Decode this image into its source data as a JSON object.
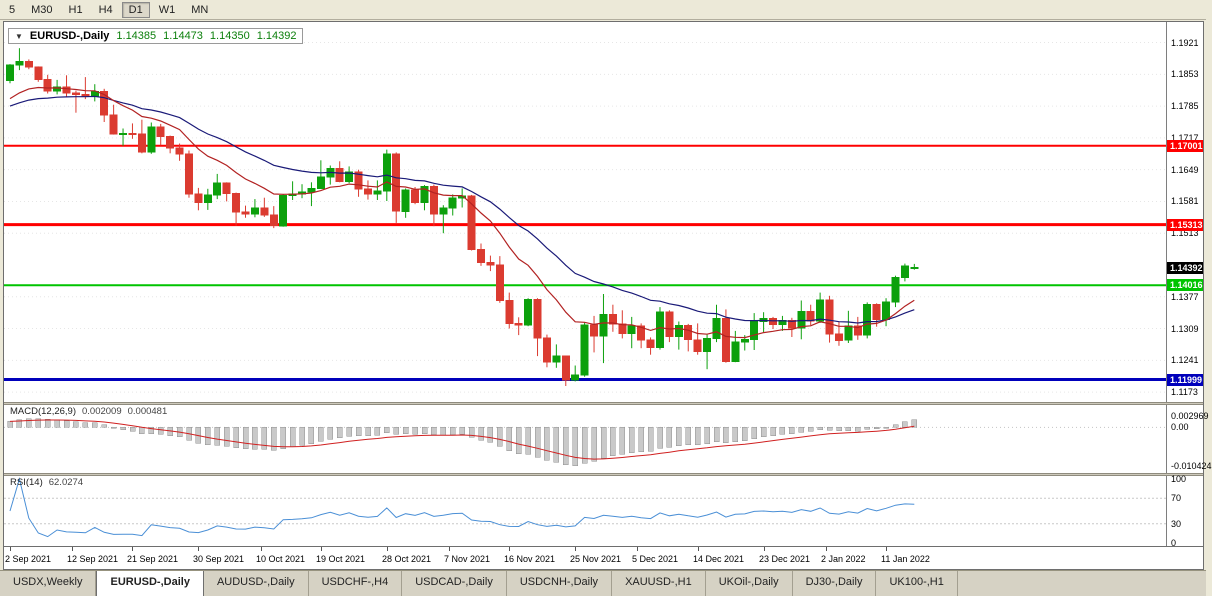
{
  "toolbar": {
    "timeframes": [
      {
        "label": "5",
        "active": false
      },
      {
        "label": "M30",
        "active": false
      },
      {
        "label": "H1",
        "active": false
      },
      {
        "label": "H4",
        "active": false
      },
      {
        "label": "D1",
        "active": true
      },
      {
        "label": "W1",
        "active": false
      },
      {
        "label": "MN",
        "active": false
      }
    ]
  },
  "chart_header": {
    "dropdown_icon": "▼",
    "symbol": "EURUSD-,Daily",
    "open": "1.14385",
    "high": "1.14473",
    "low": "1.14350",
    "close": "1.14392"
  },
  "price_axis": {
    "labels": [
      "1.1921",
      "1.1853",
      "1.1785",
      "1.1717",
      "1.1649",
      "1.1581",
      "1.1513",
      "1.1377",
      "1.1309",
      "1.1241",
      "1.1173"
    ]
  },
  "current_price": {
    "label": "1.14392",
    "value": 1.14392,
    "color": "#000000"
  },
  "hlines": [
    {
      "label": "1.17001",
      "value": 1.17001,
      "color": "#ff0000",
      "width": 2
    },
    {
      "label": "1.15313",
      "value": 1.15313,
      "color": "#ff0000",
      "width": 3
    },
    {
      "label": "1.14016",
      "value": 1.14016,
      "color": "#00c400",
      "width": 2
    },
    {
      "label": "1.11999",
      "value": 1.11999,
      "color": "#0000bb",
      "width": 3
    }
  ],
  "x_axis": {
    "labels": [
      {
        "text": "2 Sep 2021",
        "i": 0
      },
      {
        "text": "12 Sep 2021",
        "i": 6.6
      },
      {
        "text": "21 Sep 2021",
        "i": 13
      },
      {
        "text": "30 Sep 2021",
        "i": 20
      },
      {
        "text": "10 Oct 2021",
        "i": 26.6
      },
      {
        "text": "19 Oct 2021",
        "i": 33
      },
      {
        "text": "28 Oct 2021",
        "i": 40
      },
      {
        "text": "7 Nov 2021",
        "i": 46.6
      },
      {
        "text": "16 Nov 2021",
        "i": 53
      },
      {
        "text": "25 Nov 2021",
        "i": 60
      },
      {
        "text": "5 Dec 2021",
        "i": 66.6
      },
      {
        "text": "14 Dec 2021",
        "i": 73
      },
      {
        "text": "23 Dec 2021",
        "i": 80
      },
      {
        "text": "2 Jan 2022",
        "i": 86.6
      },
      {
        "text": "11 Jan 2022",
        "i": 93
      }
    ]
  },
  "macd": {
    "label": "MACD(12,26,9)",
    "value_main": "0.002009",
    "value_signal": "0.000481",
    "axis": [
      "0.002969",
      "0.00",
      "-0.010424"
    ]
  },
  "rsi": {
    "label": "RSI(14)",
    "value": "62.0274",
    "axis": [
      "100",
      "70",
      "30",
      "0"
    ],
    "levels": [
      70,
      30
    ]
  },
  "tabs": [
    {
      "label": "USDX,Weekly",
      "active": false
    },
    {
      "label": "EURUSD-,Daily",
      "active": true
    },
    {
      "label": "AUDUSD-,Daily",
      "active": false
    },
    {
      "label": "USDCHF-,H4",
      "active": false
    },
    {
      "label": "USDCAD-,Daily",
      "active": false
    },
    {
      "label": "USDCNH-,Daily",
      "active": false
    },
    {
      "label": "XAUUSD-,H1",
      "active": false
    },
    {
      "label": "UKOil-,Daily",
      "active": false
    },
    {
      "label": "DJ30-,Daily",
      "active": false
    },
    {
      "label": "UK100-,H1",
      "active": false
    }
  ],
  "colors": {
    "bull": "#0ca00c",
    "bear": "#db3b30",
    "ema_fast": "#b22222",
    "ema_slow": "#1a1a78",
    "macd_hist": "#c9c9c9",
    "macd_signal": "#d02020",
    "rsi_line": "#4a8fd6"
  },
  "chart_data": {
    "type": "candlestick",
    "symbol": "EURUSD-",
    "timeframe": "Daily",
    "candles": [
      [
        1.184,
        1.1875,
        1.1834,
        1.1873
      ],
      [
        1.1873,
        1.1909,
        1.1862,
        1.188
      ],
      [
        1.188,
        1.1885,
        1.1864,
        1.1869
      ],
      [
        1.1869,
        1.187,
        1.1837,
        1.1842
      ],
      [
        1.1842,
        1.1852,
        1.1812,
        1.1817
      ],
      [
        1.1817,
        1.1841,
        1.181,
        1.1826
      ],
      [
        1.1826,
        1.1851,
        1.1805,
        1.1813
      ],
      [
        1.1813,
        1.1818,
        1.1771,
        1.181
      ],
      [
        1.181,
        1.1847,
        1.18,
        1.1805
      ],
      [
        1.1805,
        1.1832,
        1.1795,
        1.1816
      ],
      [
        1.1816,
        1.1822,
        1.1751,
        1.1766
      ],
      [
        1.1766,
        1.1788,
        1.1724,
        1.1725
      ],
      [
        1.1725,
        1.1737,
        1.17,
        1.1726
      ],
      [
        1.1726,
        1.1748,
        1.1715,
        1.1725
      ],
      [
        1.1725,
        1.1756,
        1.1684,
        1.1687
      ],
      [
        1.1687,
        1.175,
        1.1683,
        1.174
      ],
      [
        1.174,
        1.1747,
        1.1701,
        1.172
      ],
      [
        1.172,
        1.1722,
        1.1684,
        1.1695
      ],
      [
        1.1695,
        1.1705,
        1.1668,
        1.1683
      ],
      [
        1.1683,
        1.169,
        1.1589,
        1.1597
      ],
      [
        1.1597,
        1.161,
        1.1562,
        1.1579
      ],
      [
        1.1579,
        1.1608,
        1.1563,
        1.1595
      ],
      [
        1.1595,
        1.164,
        1.1586,
        1.1621
      ],
      [
        1.1621,
        1.1622,
        1.1581,
        1.1598
      ],
      [
        1.1598,
        1.16,
        1.1529,
        1.1558
      ],
      [
        1.1558,
        1.1572,
        1.1546,
        1.1554
      ],
      [
        1.1554,
        1.1586,
        1.1547,
        1.1567
      ],
      [
        1.1567,
        1.1589,
        1.1548,
        1.1552
      ],
      [
        1.1552,
        1.1571,
        1.1524,
        1.1529
      ],
      [
        1.1529,
        1.1597,
        1.1527,
        1.1594
      ],
      [
        1.1594,
        1.1624,
        1.1584,
        1.1597
      ],
      [
        1.1597,
        1.1618,
        1.1588,
        1.1601
      ],
      [
        1.1601,
        1.1622,
        1.1571,
        1.1609
      ],
      [
        1.1609,
        1.1669,
        1.1608,
        1.1633
      ],
      [
        1.1633,
        1.1658,
        1.1617,
        1.1652
      ],
      [
        1.1652,
        1.1667,
        1.1622,
        1.1624
      ],
      [
        1.1624,
        1.1656,
        1.162,
        1.1644
      ],
      [
        1.1644,
        1.1649,
        1.1591,
        1.1608
      ],
      [
        1.1608,
        1.1626,
        1.1585,
        1.1597
      ],
      [
        1.1597,
        1.1626,
        1.1584,
        1.1603
      ],
      [
        1.1603,
        1.1692,
        1.1582,
        1.1682
      ],
      [
        1.1682,
        1.1686,
        1.1535,
        1.156
      ],
      [
        1.156,
        1.1609,
        1.1546,
        1.1606
      ],
      [
        1.1606,
        1.1612,
        1.1575,
        1.1579
      ],
      [
        1.1579,
        1.1616,
        1.1562,
        1.1613
      ],
      [
        1.1613,
        1.1617,
        1.1528,
        1.1554
      ],
      [
        1.1554,
        1.1573,
        1.1513,
        1.1567
      ],
      [
        1.1567,
        1.1596,
        1.1551,
        1.1588
      ],
      [
        1.1588,
        1.1609,
        1.1568,
        1.1593
      ],
      [
        1.1593,
        1.1595,
        1.1476,
        1.1478
      ],
      [
        1.1478,
        1.1491,
        1.1443,
        1.145
      ],
      [
        1.145,
        1.1465,
        1.1432,
        1.1445
      ],
      [
        1.1445,
        1.1464,
        1.1364,
        1.1369
      ],
      [
        1.1369,
        1.1386,
        1.1309,
        1.132
      ],
      [
        1.132,
        1.1333,
        1.1295,
        1.1317
      ],
      [
        1.1317,
        1.1374,
        1.1314,
        1.1371
      ],
      [
        1.1371,
        1.1374,
        1.125,
        1.1289
      ],
      [
        1.1289,
        1.1296,
        1.1226,
        1.1237
      ],
      [
        1.1237,
        1.1275,
        1.1225,
        1.125
      ],
      [
        1.125,
        1.1251,
        1.1186,
        1.1199
      ],
      [
        1.1199,
        1.123,
        1.1196,
        1.121
      ],
      [
        1.121,
        1.1323,
        1.1206,
        1.1317
      ],
      [
        1.1317,
        1.1336,
        1.1258,
        1.1293
      ],
      [
        1.1293,
        1.1383,
        1.1235,
        1.1339
      ],
      [
        1.1339,
        1.136,
        1.1302,
        1.1319
      ],
      [
        1.1319,
        1.1348,
        1.1288,
        1.1298
      ],
      [
        1.1298,
        1.1334,
        1.1267,
        1.1314
      ],
      [
        1.1314,
        1.132,
        1.1267,
        1.1284
      ],
      [
        1.1284,
        1.129,
        1.1253,
        1.1268
      ],
      [
        1.1268,
        1.1355,
        1.1264,
        1.1344
      ],
      [
        1.1344,
        1.1348,
        1.128,
        1.1292
      ],
      [
        1.1292,
        1.1324,
        1.1264,
        1.1315
      ],
      [
        1.1315,
        1.1319,
        1.126,
        1.1285
      ],
      [
        1.1285,
        1.132,
        1.1253,
        1.126
      ],
      [
        1.126,
        1.1296,
        1.1222,
        1.1288
      ],
      [
        1.1288,
        1.136,
        1.128,
        1.133
      ],
      [
        1.133,
        1.135,
        1.1236,
        1.1238
      ],
      [
        1.1238,
        1.1304,
        1.1237,
        1.128
      ],
      [
        1.128,
        1.1295,
        1.1262,
        1.1286
      ],
      [
        1.1286,
        1.1342,
        1.1263,
        1.1324
      ],
      [
        1.1324,
        1.1344,
        1.13,
        1.133
      ],
      [
        1.133,
        1.1334,
        1.1308,
        1.1318
      ],
      [
        1.1318,
        1.1336,
        1.1304,
        1.1326
      ],
      [
        1.1326,
        1.1332,
        1.1291,
        1.131
      ],
      [
        1.131,
        1.1369,
        1.1286,
        1.1346
      ],
      [
        1.1346,
        1.136,
        1.1316,
        1.1325
      ],
      [
        1.1325,
        1.1386,
        1.1321,
        1.137
      ],
      [
        1.137,
        1.1379,
        1.1279,
        1.1297
      ],
      [
        1.1297,
        1.1324,
        1.1272,
        1.1284
      ],
      [
        1.1284,
        1.1347,
        1.1278,
        1.1314
      ],
      [
        1.1314,
        1.1334,
        1.1285,
        1.1295
      ],
      [
        1.1295,
        1.1365,
        1.1288,
        1.136
      ],
      [
        1.136,
        1.1363,
        1.1313,
        1.1328
      ],
      [
        1.1328,
        1.1374,
        1.1314,
        1.1366
      ],
      [
        1.1366,
        1.1422,
        1.1355,
        1.1418
      ],
      [
        1.1418,
        1.1448,
        1.141,
        1.1443
      ],
      [
        1.14385,
        1.14473,
        1.1435,
        1.14392
      ]
    ]
  }
}
